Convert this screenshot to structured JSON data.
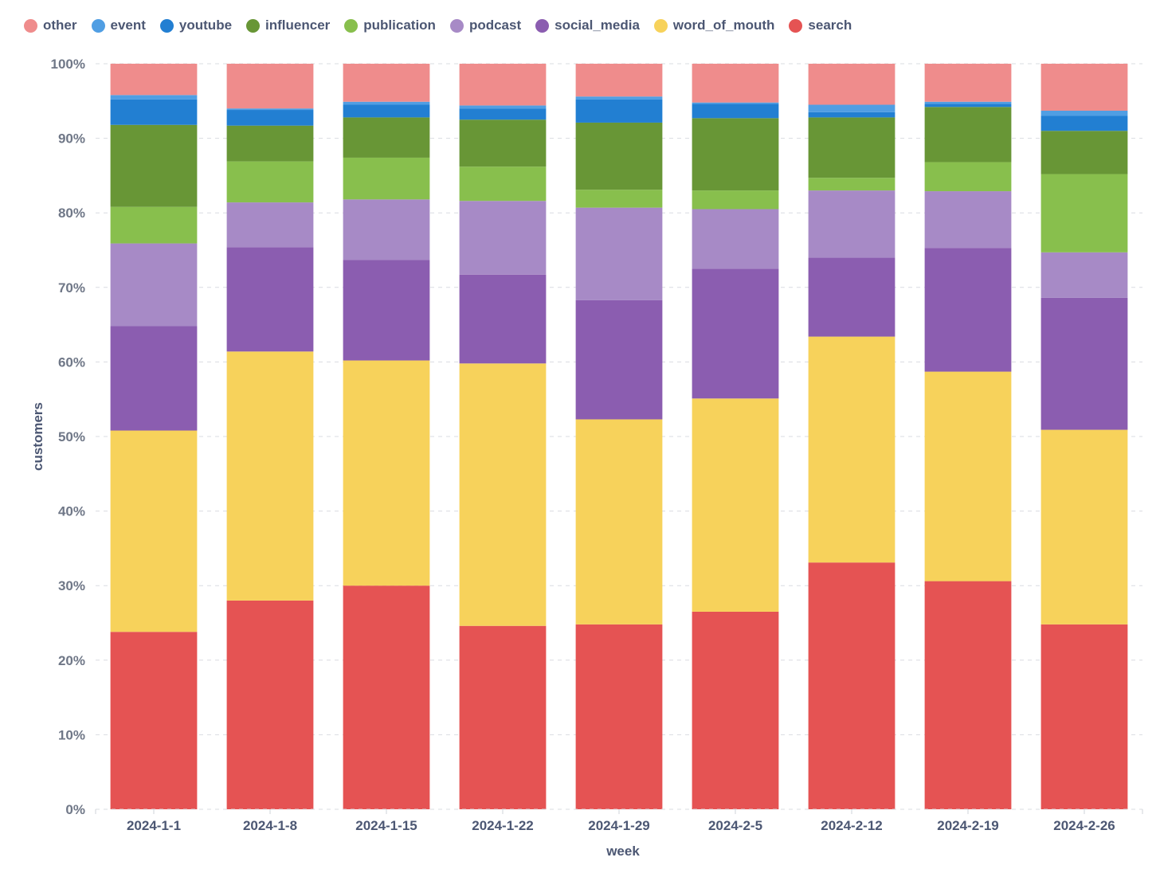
{
  "chart_data": {
    "type": "bar",
    "stacked": true,
    "normalized": true,
    "xlabel": "week",
    "ylabel": "customers",
    "ylim": [
      0,
      100
    ],
    "yticks": [
      "0%",
      "10%",
      "20%",
      "30%",
      "40%",
      "50%",
      "60%",
      "70%",
      "80%",
      "90%",
      "100%"
    ],
    "grid": "horizontal-dashed",
    "legend_position": "top-left",
    "categories": [
      "2024-1-1",
      "2024-1-8",
      "2024-1-15",
      "2024-1-22",
      "2024-1-29",
      "2024-2-5",
      "2024-2-12",
      "2024-2-19",
      "2024-2-26"
    ],
    "legend": [
      "other",
      "event",
      "youtube",
      "influencer",
      "publication",
      "podcast",
      "social_media",
      "word_of_mouth",
      "search"
    ],
    "series": [
      {
        "name": "search",
        "color": "#e55353",
        "values": [
          23.8,
          28.0,
          30.0,
          24.6,
          24.8,
          26.5,
          33.1,
          30.6,
          24.8
        ]
      },
      {
        "name": "word_of_mouth",
        "color": "#f7d25b",
        "values": [
          27.0,
          33.4,
          30.2,
          35.2,
          27.5,
          28.6,
          30.3,
          28.1,
          26.1
        ]
      },
      {
        "name": "social_media",
        "color": "#8b5db0",
        "values": [
          14.0,
          14.0,
          13.5,
          11.9,
          16.0,
          17.4,
          10.6,
          16.6,
          17.7
        ]
      },
      {
        "name": "podcast",
        "color": "#a78ac6",
        "values": [
          11.1,
          6.0,
          8.1,
          9.9,
          12.4,
          8.0,
          9.0,
          7.6,
          6.1
        ]
      },
      {
        "name": "publication",
        "color": "#88bf4d",
        "values": [
          4.9,
          5.5,
          5.6,
          4.6,
          2.4,
          2.5,
          1.7,
          3.9,
          10.5
        ]
      },
      {
        "name": "influencer",
        "color": "#689636",
        "values": [
          11.0,
          4.8,
          5.4,
          6.3,
          9.0,
          9.7,
          8.1,
          7.4,
          5.8
        ]
      },
      {
        "name": "youtube",
        "color": "#227fd2",
        "values": [
          3.4,
          2.1,
          1.7,
          1.5,
          3.1,
          1.9,
          0.7,
          0.4,
          2.0
        ]
      },
      {
        "name": "event",
        "color": "#509ee3",
        "values": [
          0.6,
          0.2,
          0.4,
          0.4,
          0.4,
          0.2,
          1.0,
          0.3,
          0.7
        ]
      },
      {
        "name": "other",
        "color": "#ef8c8c",
        "values": [
          4.2,
          6.0,
          5.1,
          5.6,
          4.4,
          5.2,
          5.5,
          5.1,
          6.3
        ]
      }
    ]
  }
}
